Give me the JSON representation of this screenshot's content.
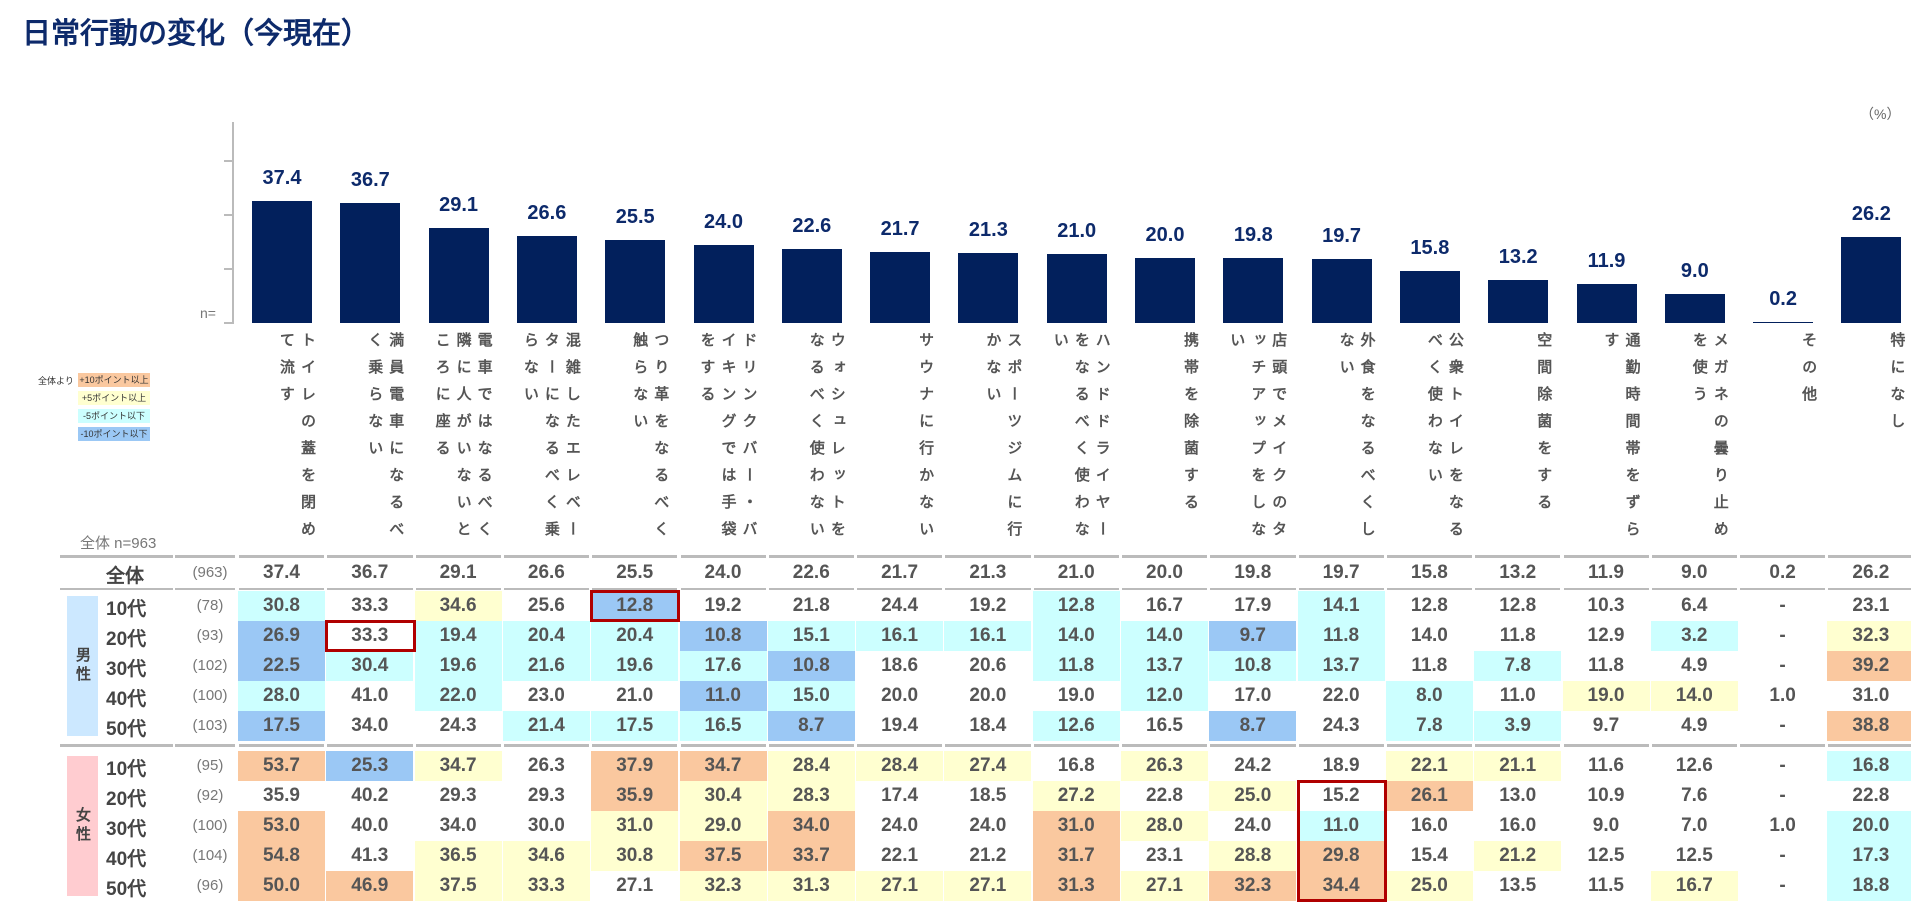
{
  "title": "日常行動の変化（今現在）",
  "unit": "（%）",
  "n_label": "n=",
  "overall_label": "全体 n=963",
  "legend": {
    "caption": "全体より",
    "items": [
      {
        "label": "+10ポイント以上",
        "code": "o",
        "color": "#fac89f"
      },
      {
        "label": "+5ポイント以上",
        "code": "y",
        "color": "#ffffd0"
      },
      {
        "label": "-5ポイント以下",
        "code": "c",
        "color": "#ccffff"
      },
      {
        "label": "-10ポイント以下",
        "code": "b",
        "color": "#9bc8f5"
      }
    ]
  },
  "chart_data": {
    "type": "bar",
    "title": "日常行動の変化（今現在）",
    "ylabel": "%",
    "ylim": [
      0,
      40
    ],
    "bar_color": "#02205c",
    "categories": [
      "トイレの蓋を閉めて流す",
      "満員電車になるべく乗らない",
      "電車ではなるべく隣に人がいないところに座る",
      "混雑したエレベーターになるべく乗らない",
      "つり革をなるべく触らない",
      "ドリンクバー・バイキングでは手袋をする",
      "ウォシュレットをなるべく使わない",
      "サウナに行かない",
      "スポーツジムに行かない",
      "ハンドドライヤーをなるべく使わない",
      "携帯を除菌する",
      "店頭でメイクのタッチアップをしない",
      "外食をなるべくしない",
      "公衆トイレをなるべく使わない",
      "空間除菌をする",
      "通勤時間帯をずらす",
      "メガネの曇り止めを使う",
      "その他",
      "特になし"
    ],
    "values": [
      37.4,
      36.7,
      29.1,
      26.6,
      25.5,
      24.0,
      22.6,
      21.7,
      21.3,
      21.0,
      20.0,
      19.8,
      19.7,
      15.8,
      13.2,
      11.9,
      9.0,
      0.2,
      26.2
    ],
    "value_labels": [
      "37.4",
      "36.7",
      "29.1",
      "26.6",
      "25.5",
      "24.0",
      "22.6",
      "21.7",
      "21.3",
      "21.0",
      "20.0",
      "19.8",
      "19.7",
      "15.8",
      "13.2",
      "11.9",
      "9.0",
      "0.2",
      "26.2"
    ]
  },
  "table": {
    "total": {
      "label": "全体",
      "n": "(963)",
      "values": [
        "37.4",
        "36.7",
        "29.1",
        "26.6",
        "25.5",
        "24.0",
        "22.6",
        "21.7",
        "21.3",
        "21.0",
        "20.0",
        "19.8",
        "19.7",
        "15.8",
        "13.2",
        "11.9",
        "9.0",
        "0.2",
        "26.2"
      ]
    },
    "groups": [
      {
        "label": "男性",
        "color": "#cce8ff",
        "rows": [
          {
            "label": "10代",
            "n": "(78)",
            "values": [
              "30.8",
              "33.3",
              "34.6",
              "25.6",
              "12.8",
              "19.2",
              "21.8",
              "24.4",
              "19.2",
              "12.8",
              "16.7",
              "17.9",
              "14.1",
              "12.8",
              "12.8",
              "10.3",
              "6.4",
              "-",
              "23.1"
            ],
            "colors": [
              "c",
              "",
              "y",
              "",
              "b",
              "",
              "",
              "",
              "",
              "c",
              "",
              "",
              "c",
              "",
              "",
              "",
              "",
              "",
              ""
            ]
          },
          {
            "label": "20代",
            "n": "(93)",
            "values": [
              "26.9",
              "33.3",
              "19.4",
              "20.4",
              "20.4",
              "10.8",
              "15.1",
              "16.1",
              "16.1",
              "14.0",
              "14.0",
              "9.7",
              "11.8",
              "14.0",
              "11.8",
              "12.9",
              "3.2",
              "-",
              "32.3"
            ],
            "colors": [
              "b",
              "",
              "c",
              "c",
              "c",
              "b",
              "c",
              "c",
              "c",
              "c",
              "c",
              "b",
              "c",
              "",
              "",
              "",
              "c",
              "",
              "y"
            ]
          },
          {
            "label": "30代",
            "n": "(102)",
            "values": [
              "22.5",
              "30.4",
              "19.6",
              "21.6",
              "19.6",
              "17.6",
              "10.8",
              "18.6",
              "20.6",
              "11.8",
              "13.7",
              "10.8",
              "13.7",
              "11.8",
              "7.8",
              "11.8",
              "4.9",
              "-",
              "39.2"
            ],
            "colors": [
              "b",
              "c",
              "c",
              "c",
              "c",
              "c",
              "b",
              "",
              "",
              "c",
              "c",
              "c",
              "c",
              "",
              "c",
              "",
              "",
              "",
              "o"
            ]
          },
          {
            "label": "40代",
            "n": "(100)",
            "values": [
              "28.0",
              "41.0",
              "22.0",
              "23.0",
              "21.0",
              "11.0",
              "15.0",
              "20.0",
              "20.0",
              "19.0",
              "12.0",
              "17.0",
              "22.0",
              "8.0",
              "11.0",
              "19.0",
              "14.0",
              "1.0",
              "31.0"
            ],
            "colors": [
              "c",
              "",
              "c",
              "",
              "",
              "b",
              "c",
              "",
              "",
              "",
              "c",
              "",
              "",
              "c",
              "",
              "y",
              "y",
              "",
              ""
            ]
          },
          {
            "label": "50代",
            "n": "(103)",
            "values": [
              "17.5",
              "34.0",
              "24.3",
              "21.4",
              "17.5",
              "16.5",
              "8.7",
              "19.4",
              "18.4",
              "12.6",
              "16.5",
              "8.7",
              "24.3",
              "7.8",
              "3.9",
              "9.7",
              "4.9",
              "-",
              "38.8"
            ],
            "colors": [
              "b",
              "",
              "",
              "c",
              "c",
              "c",
              "b",
              "",
              "",
              "c",
              "",
              "b",
              "",
              "c",
              "c",
              "",
              "",
              "",
              "o"
            ]
          }
        ]
      },
      {
        "label": "女性",
        "color": "#ffccd0",
        "rows": [
          {
            "label": "10代",
            "n": "(95)",
            "values": [
              "53.7",
              "25.3",
              "34.7",
              "26.3",
              "37.9",
              "34.7",
              "28.4",
              "28.4",
              "27.4",
              "16.8",
              "26.3",
              "24.2",
              "18.9",
              "22.1",
              "21.1",
              "11.6",
              "12.6",
              "-",
              "16.8"
            ],
            "colors": [
              "o",
              "b",
              "y",
              "",
              "o",
              "o",
              "y",
              "y",
              "y",
              "",
              "y",
              "",
              "",
              "y",
              "y",
              "",
              "",
              "",
              "c"
            ]
          },
          {
            "label": "20代",
            "n": "(92)",
            "values": [
              "35.9",
              "40.2",
              "29.3",
              "29.3",
              "35.9",
              "30.4",
              "28.3",
              "17.4",
              "18.5",
              "27.2",
              "22.8",
              "25.0",
              "15.2",
              "26.1",
              "13.0",
              "10.9",
              "7.6",
              "-",
              "22.8"
            ],
            "colors": [
              "",
              "",
              "",
              "",
              "o",
              "y",
              "y",
              "",
              "",
              "y",
              "",
              "y",
              "",
              "o",
              "",
              "",
              "",
              "",
              ""
            ]
          },
          {
            "label": "30代",
            "n": "(100)",
            "values": [
              "53.0",
              "40.0",
              "34.0",
              "30.0",
              "31.0",
              "29.0",
              "34.0",
              "24.0",
              "24.0",
              "31.0",
              "28.0",
              "24.0",
              "11.0",
              "16.0",
              "16.0",
              "9.0",
              "7.0",
              "1.0",
              "20.0"
            ],
            "colors": [
              "o",
              "",
              "",
              "",
              "y",
              "y",
              "o",
              "",
              "",
              "o",
              "y",
              "",
              "c",
              "",
              "",
              "",
              "",
              "",
              "c"
            ]
          },
          {
            "label": "40代",
            "n": "(104)",
            "values": [
              "54.8",
              "41.3",
              "36.5",
              "34.6",
              "30.8",
              "37.5",
              "33.7",
              "22.1",
              "21.2",
              "31.7",
              "23.1",
              "28.8",
              "29.8",
              "15.4",
              "21.2",
              "12.5",
              "12.5",
              "-",
              "17.3"
            ],
            "colors": [
              "o",
              "",
              "y",
              "y",
              "y",
              "o",
              "o",
              "",
              "",
              "o",
              "",
              "y",
              "o",
              "",
              "y",
              "",
              "",
              "",
              "c"
            ]
          },
          {
            "label": "50代",
            "n": "(96)",
            "values": [
              "50.0",
              "46.9",
              "37.5",
              "33.3",
              "27.1",
              "32.3",
              "31.3",
              "27.1",
              "27.1",
              "31.3",
              "27.1",
              "32.3",
              "34.4",
              "25.0",
              "13.5",
              "11.5",
              "16.7",
              "-",
              "18.8"
            ],
            "colors": [
              "o",
              "o",
              "y",
              "y",
              "",
              "y",
              "y",
              "y",
              "y",
              "o",
              "y",
              "o",
              "o",
              "y",
              "",
              "",
              "y",
              "",
              "c"
            ]
          }
        ]
      }
    ]
  }
}
